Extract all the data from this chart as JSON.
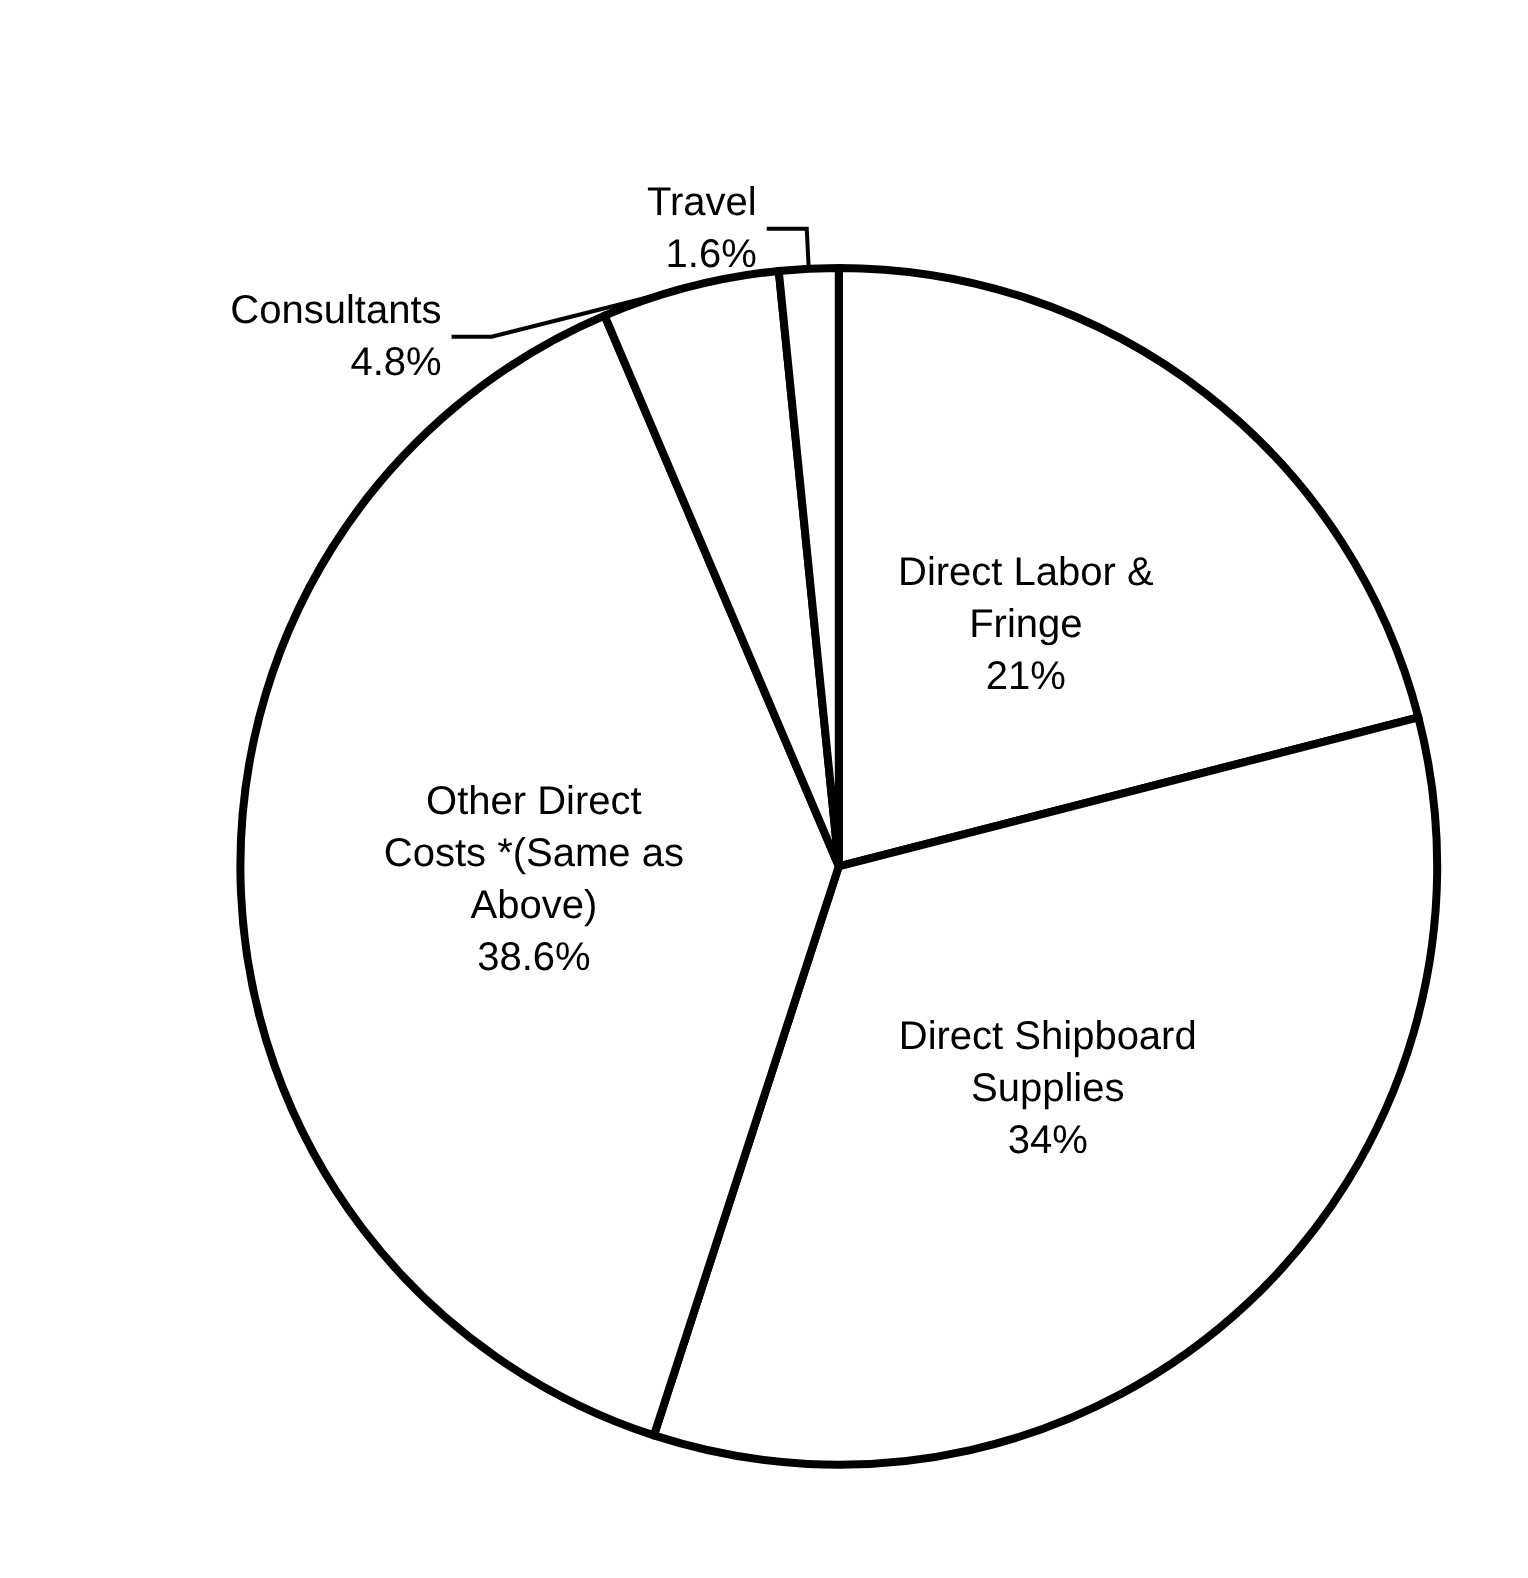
{
  "chart_data": {
    "type": "pie",
    "categories": [
      "Direct Labor & Fringe",
      "Direct Shipboard Supplies",
      "Other Direct Costs *(Same as Above)",
      "Consultants",
      "Travel"
    ],
    "values": [
      21,
      34,
      38.6,
      4.8,
      1.6
    ],
    "value_labels": [
      "21%",
      "34%",
      "38.6%",
      "4.8%",
      "1.6%"
    ],
    "colors": [
      "#ffffff",
      "#ffffff",
      "#ffffff",
      "#ffffff",
      "#ffffff"
    ],
    "legend": false
  }
}
